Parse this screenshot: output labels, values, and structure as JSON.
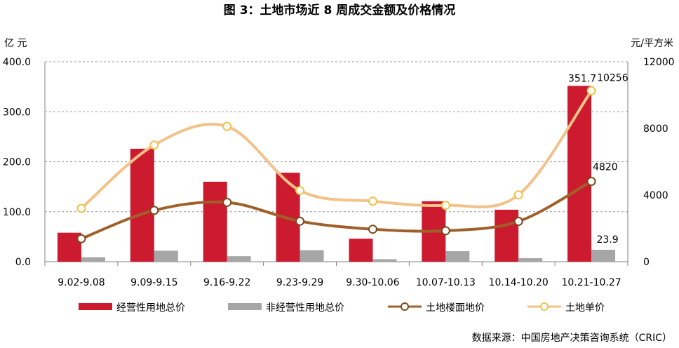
{
  "chart_data": {
    "type": "bar",
    "title": "图 3：土地市场近 8 周成交金额及价格情况",
    "y_left_unit": "亿 元",
    "y_right_unit": "元/平方米",
    "ylim_left": [
      0,
      400
    ],
    "ylim_right": [
      0,
      12000
    ],
    "y_left_ticks": [
      "400.0",
      "300.0",
      "200.0",
      "100.0",
      "0.0"
    ],
    "y_right_ticks": [
      "12000",
      "8000",
      "4000",
      "0"
    ],
    "categories": [
      "9.02-9.08",
      "9.09-9.15",
      "9.16-9.22",
      "9.23-9.29",
      "9.30-10.06",
      "10.07-10.13",
      "10.14-10.20",
      "10.21-10.27"
    ],
    "grid": "horizontal dashed",
    "legend_position": "bottom",
    "series": [
      {
        "name": "经营性用地总价",
        "kind": "bar",
        "axis": "left",
        "color": "#cc1a2e",
        "values": [
          58,
          226,
          160,
          178,
          46,
          121,
          104,
          351.7
        ]
      },
      {
        "name": "非经营性用地总价",
        "kind": "bar",
        "axis": "left",
        "color": "#a6a6a6",
        "values": [
          9,
          22,
          11,
          23,
          5,
          21,
          7,
          23.9
        ]
      },
      {
        "name": "土地楼面地价",
        "kind": "line",
        "axis": "right",
        "color": "#a0602a",
        "values": [
          1380,
          3080,
          3560,
          2430,
          1950,
          1860,
          2420,
          4820
        ]
      },
      {
        "name": "土地单价",
        "kind": "line",
        "axis": "right",
        "color": "#f2c28a",
        "values": [
          3200,
          7000,
          8120,
          4270,
          3630,
          3380,
          4010,
          10256
        ]
      }
    ],
    "data_labels": [
      {
        "series": 0,
        "index": 7,
        "text": "351.7"
      },
      {
        "series": 1,
        "index": 7,
        "text": "23.9"
      },
      {
        "series": 2,
        "index": 7,
        "text": "4820"
      },
      {
        "series": 3,
        "index": 7,
        "text": "10256"
      }
    ]
  },
  "source_text": "数据来源：中国房地产决策咨询系统（CRIC）"
}
